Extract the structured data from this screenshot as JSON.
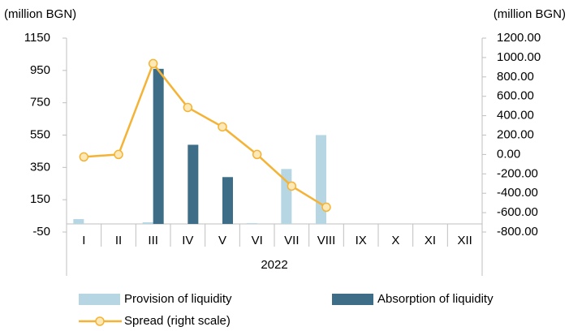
{
  "chart_data": {
    "type": "bar",
    "y_label": "(million BGN)",
    "y2_label": "(million BGN)",
    "categories": [
      "I",
      "II",
      "III",
      "IV",
      "V",
      "VI",
      "VII",
      "VIII",
      "IX",
      "X",
      "XI",
      "XII"
    ],
    "group_label": "2022",
    "series": [
      {
        "name": "Provision of liquidity",
        "type": "bar",
        "color": "#b7d6e4",
        "values": [
          30,
          0,
          10,
          0,
          0,
          5,
          340,
          550,
          null,
          null,
          null,
          null
        ]
      },
      {
        "name": "Absorption of liquidity",
        "type": "bar",
        "color": "#3e6e87",
        "values": [
          0,
          0,
          960,
          490,
          290,
          0,
          0,
          0,
          null,
          null,
          null,
          null
        ]
      },
      {
        "name": "Spread (right scale)",
        "type": "line",
        "axis": "y2",
        "color": "#f5b335",
        "marker_color": "#fde9b8",
        "values": [
          -25,
          0,
          937,
          485,
          285,
          0,
          -326,
          -544,
          null,
          null,
          null,
          null
        ]
      }
    ],
    "ylim": [
      -50,
      1150
    ],
    "yticks": [
      -50,
      150,
      350,
      550,
      750,
      950,
      1150
    ],
    "y2lim": [
      -800,
      1200
    ],
    "y2ticks": [
      {
        "value": -800,
        "label": "-800.00"
      },
      {
        "value": -600,
        "label": "-600.00"
      },
      {
        "value": -400,
        "label": "-400.00"
      },
      {
        "value": -200,
        "label": "-200.00"
      },
      {
        "value": 0,
        "label": "0.00"
      },
      {
        "value": 200,
        "label": "200.00"
      },
      {
        "value": 400,
        "label": "400.00"
      },
      {
        "value": 600,
        "label": "600.00"
      },
      {
        "value": 800,
        "label": "800.00"
      },
      {
        "value": 1000,
        "label": "1000.00"
      },
      {
        "value": 1200,
        "label": "1200.00"
      }
    ],
    "legend": "bottom",
    "grid": false
  }
}
